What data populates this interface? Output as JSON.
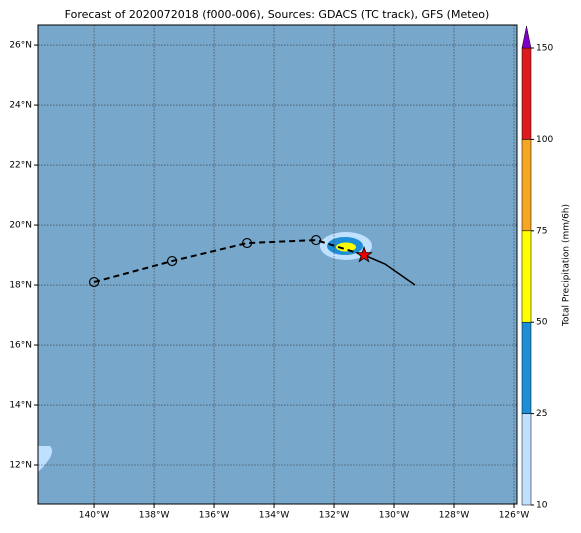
{
  "map": {
    "title": "Forecast of 2020072018 (f000-006), Sources: GDACS (TC track), GFS (Meteo)",
    "xlim": [
      -141.87,
      -125.9
    ],
    "ylim": [
      10.7,
      26.67
    ],
    "xticks": [
      {
        "value": -140,
        "label": "140°W"
      },
      {
        "value": -138,
        "label": "138°W"
      },
      {
        "value": -136,
        "label": "136°W"
      },
      {
        "value": -134,
        "label": "134°W"
      },
      {
        "value": -132,
        "label": "132°W"
      },
      {
        "value": -130,
        "label": "130°W"
      },
      {
        "value": -128,
        "label": "128°W"
      },
      {
        "value": -126,
        "label": "126°W"
      }
    ],
    "yticks": [
      {
        "value": 12,
        "label": "12°N"
      },
      {
        "value": 14,
        "label": "14°N"
      },
      {
        "value": 16,
        "label": "16°N"
      },
      {
        "value": 18,
        "label": "18°N"
      },
      {
        "value": 20,
        "label": "20°N"
      },
      {
        "value": 22,
        "label": "22°N"
      },
      {
        "value": 24,
        "label": "24°N"
      },
      {
        "value": 26,
        "label": "26°N"
      }
    ],
    "grid": true,
    "ocean_color": "#77a7cb",
    "track": {
      "past": {
        "lon": [
          -140,
          -137.4,
          -134.9,
          -132.6
        ],
        "lat": [
          18.1,
          18.8,
          19.4,
          19.5
        ]
      },
      "current": {
        "lon": -131,
        "lat": 19.0
      },
      "forecast": {
        "lon": [
          -130.3,
          -129.3
        ],
        "lat": [
          18.7,
          18.0
        ]
      }
    },
    "colorbar": {
      "label": "Total Precipitation (mm/6h)",
      "ticks": [
        10,
        25,
        50,
        75,
        100,
        150
      ],
      "colors": [
        "#bfe0ff",
        "#1e8fd6",
        "#ffff00",
        "#f5a623",
        "#dc1c1c"
      ],
      "extend_color": "#8000c8"
    }
  }
}
